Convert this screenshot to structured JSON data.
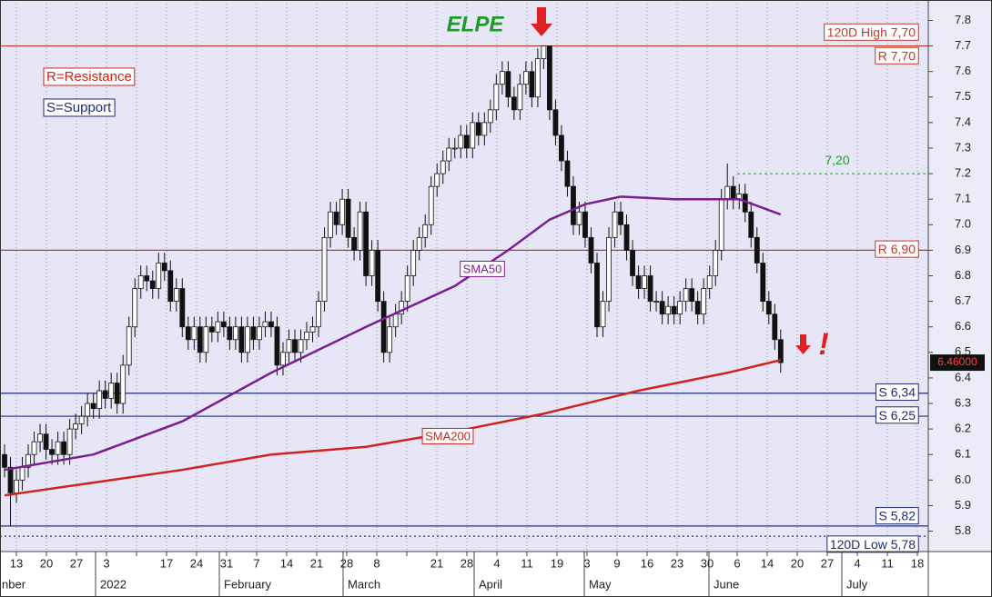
{
  "chart_data": {
    "type": "candlestick",
    "title": "ELPE",
    "legend": [
      "R=Resistance",
      "S=Support"
    ],
    "ylim": [
      5.72,
      7.88
    ],
    "yticks": [
      5.8,
      5.9,
      {
        "value": 6.0,
        "label": "6.0"
      },
      6.1,
      6.2,
      6.3,
      6.4,
      6.5,
      6.6,
      6.7,
      6.8,
      6.9,
      {
        "value": 7.0,
        "label": "7.0"
      },
      7.1,
      7.2,
      7.3,
      7.4,
      7.5,
      7.6,
      7.7,
      7.8
    ],
    "xticks": [
      "13",
      "20",
      "27",
      "3",
      null,
      "17",
      "24",
      "31",
      "7",
      "14",
      "21",
      "28",
      "8",
      null,
      "21",
      "28",
      "4",
      "11",
      "19",
      "3",
      "9",
      "16",
      "23",
      "30",
      "6",
      "14",
      "20",
      "27",
      "4",
      "11",
      "18"
    ],
    "months": [
      "nber",
      "2022",
      "February",
      "March",
      "April",
      "May",
      "June",
      "July"
    ],
    "grid": true,
    "candles": [
      [
        6.1,
        6.14,
        6.01,
        6.05
      ],
      [
        6.05,
        6.09,
        5.82,
        5.95
      ],
      [
        5.95,
        6.04,
        5.91,
        6.0
      ],
      [
        6.0,
        6.09,
        5.96,
        6.05
      ],
      [
        6.05,
        6.14,
        6.01,
        6.1
      ],
      [
        6.1,
        6.19,
        6.06,
        6.15
      ],
      [
        6.15,
        6.22,
        6.11,
        6.18
      ],
      [
        6.18,
        6.22,
        6.08,
        6.12
      ],
      [
        6.12,
        6.16,
        6.06,
        6.1
      ],
      [
        6.1,
        6.19,
        6.06,
        6.15
      ],
      [
        6.15,
        6.19,
        6.06,
        6.1
      ],
      [
        6.1,
        6.24,
        6.06,
        6.2
      ],
      [
        6.2,
        6.26,
        6.16,
        6.22
      ],
      [
        6.22,
        6.29,
        6.18,
        6.25
      ],
      [
        6.25,
        6.34,
        6.21,
        6.3
      ],
      [
        6.3,
        6.34,
        6.24,
        6.28
      ],
      [
        6.28,
        6.39,
        6.24,
        6.35
      ],
      [
        6.35,
        6.39,
        6.28,
        6.32
      ],
      [
        6.32,
        6.42,
        6.28,
        6.38
      ],
      [
        6.38,
        6.42,
        6.26,
        6.3
      ],
      [
        6.3,
        6.49,
        6.26,
        6.45
      ],
      [
        6.45,
        6.64,
        6.41,
        6.6
      ],
      [
        6.6,
        6.79,
        6.56,
        6.75
      ],
      [
        6.75,
        6.84,
        6.71,
        6.8
      ],
      [
        6.8,
        6.84,
        6.74,
        6.78
      ],
      [
        6.78,
        6.82,
        6.71,
        6.75
      ],
      [
        6.75,
        6.89,
        6.71,
        6.85
      ],
      [
        6.85,
        6.89,
        6.78,
        6.82
      ],
      [
        6.82,
        6.86,
        6.66,
        6.7
      ],
      [
        6.7,
        6.79,
        6.66,
        6.75
      ],
      [
        6.75,
        6.79,
        6.56,
        6.6
      ],
      [
        6.6,
        6.64,
        6.51,
        6.55
      ],
      [
        6.55,
        6.64,
        6.51,
        6.6
      ],
      [
        6.6,
        6.64,
        6.46,
        6.5
      ],
      [
        6.5,
        6.64,
        6.46,
        6.6
      ],
      [
        6.6,
        6.64,
        6.54,
        6.58
      ],
      [
        6.58,
        6.66,
        6.54,
        6.62
      ],
      [
        6.62,
        6.66,
        6.56,
        6.6
      ],
      [
        6.6,
        6.64,
        6.51,
        6.55
      ],
      [
        6.55,
        6.64,
        6.51,
        6.6
      ],
      [
        6.6,
        6.64,
        6.46,
        6.5
      ],
      [
        6.5,
        6.64,
        6.46,
        6.6
      ],
      [
        6.6,
        6.64,
        6.51,
        6.55
      ],
      [
        6.55,
        6.64,
        6.51,
        6.6
      ],
      [
        6.6,
        6.66,
        6.56,
        6.62
      ],
      [
        6.62,
        6.66,
        6.56,
        6.6
      ],
      [
        6.6,
        6.64,
        6.41,
        6.45
      ],
      [
        6.45,
        6.54,
        6.41,
        6.5
      ],
      [
        6.5,
        6.59,
        6.46,
        6.55
      ],
      [
        6.55,
        6.59,
        6.46,
        6.5
      ],
      [
        6.5,
        6.59,
        6.46,
        6.55
      ],
      [
        6.55,
        6.62,
        6.51,
        6.58
      ],
      [
        6.58,
        6.64,
        6.54,
        6.6
      ],
      [
        6.6,
        6.74,
        6.56,
        6.7
      ],
      [
        6.7,
        6.99,
        6.66,
        6.95
      ],
      [
        6.95,
        7.09,
        6.91,
        7.05
      ],
      [
        7.05,
        7.09,
        6.96,
        7.0
      ],
      [
        7.0,
        7.14,
        6.96,
        7.1
      ],
      [
        7.1,
        7.14,
        6.91,
        6.95
      ],
      [
        6.95,
        6.99,
        6.86,
        6.9
      ],
      [
        6.9,
        7.09,
        6.86,
        7.05
      ],
      [
        7.05,
        7.09,
        6.76,
        6.8
      ],
      [
        6.8,
        6.94,
        6.76,
        6.9
      ],
      [
        6.9,
        6.94,
        6.66,
        6.7
      ],
      [
        6.7,
        6.74,
        6.46,
        6.5
      ],
      [
        6.5,
        6.64,
        6.46,
        6.6
      ],
      [
        6.6,
        6.69,
        6.56,
        6.65
      ],
      [
        6.65,
        6.74,
        6.61,
        6.7
      ],
      [
        6.7,
        6.84,
        6.66,
        6.8
      ],
      [
        6.8,
        6.94,
        6.76,
        6.9
      ],
      [
        6.9,
        6.99,
        6.86,
        6.95
      ],
      [
        6.95,
        7.04,
        6.91,
        7.0
      ],
      [
        7.0,
        7.19,
        6.96,
        7.15
      ],
      [
        7.15,
        7.24,
        7.11,
        7.2
      ],
      [
        7.2,
        7.29,
        7.16,
        7.25
      ],
      [
        7.25,
        7.34,
        7.21,
        7.3
      ],
      [
        7.3,
        7.34,
        7.26,
        7.3
      ],
      [
        7.3,
        7.39,
        7.26,
        7.35
      ],
      [
        7.35,
        7.39,
        7.26,
        7.3
      ],
      [
        7.3,
        7.44,
        7.26,
        7.4
      ],
      [
        7.4,
        7.44,
        7.31,
        7.35
      ],
      [
        7.35,
        7.44,
        7.31,
        7.4
      ],
      [
        7.4,
        7.49,
        7.36,
        7.45
      ],
      [
        7.45,
        7.59,
        7.41,
        7.55
      ],
      [
        7.55,
        7.64,
        7.51,
        7.6
      ],
      [
        7.6,
        7.64,
        7.46,
        7.5
      ],
      [
        7.5,
        7.54,
        7.41,
        7.45
      ],
      [
        7.45,
        7.59,
        7.41,
        7.55
      ],
      [
        7.55,
        7.64,
        7.51,
        7.6
      ],
      [
        7.6,
        7.64,
        7.46,
        7.5
      ],
      [
        7.5,
        7.69,
        7.46,
        7.65
      ],
      [
        7.65,
        7.7,
        7.61,
        7.7
      ],
      [
        7.7,
        7.7,
        7.41,
        7.45
      ],
      [
        7.45,
        7.49,
        7.31,
        7.35
      ],
      [
        7.35,
        7.39,
        7.21,
        7.25
      ],
      [
        7.25,
        7.29,
        7.11,
        7.15
      ],
      [
        7.15,
        7.19,
        6.96,
        7.0
      ],
      [
        7.0,
        7.09,
        6.96,
        7.05
      ],
      [
        7.05,
        7.09,
        6.91,
        6.95
      ],
      [
        6.95,
        6.99,
        6.81,
        6.85
      ],
      [
        6.85,
        6.89,
        6.56,
        6.6
      ],
      [
        6.6,
        6.74,
        6.56,
        6.7
      ],
      [
        6.7,
        6.99,
        6.66,
        6.95
      ],
      [
        6.95,
        7.09,
        6.91,
        7.05
      ],
      [
        7.05,
        7.09,
        6.96,
        7.0
      ],
      [
        7.0,
        7.04,
        6.86,
        6.9
      ],
      [
        6.9,
        6.94,
        6.76,
        6.8
      ],
      [
        6.8,
        6.84,
        6.71,
        6.75
      ],
      [
        6.75,
        6.84,
        6.71,
        6.8
      ],
      [
        6.8,
        6.84,
        6.66,
        6.7
      ],
      [
        6.7,
        6.74,
        6.66,
        6.7
      ],
      [
        6.7,
        6.74,
        6.61,
        6.65
      ],
      [
        6.65,
        6.72,
        6.61,
        6.68
      ],
      [
        6.68,
        6.72,
        6.61,
        6.65
      ],
      [
        6.65,
        6.74,
        6.61,
        6.7
      ],
      [
        6.7,
        6.79,
        6.66,
        6.75
      ],
      [
        6.75,
        6.79,
        6.66,
        6.7
      ],
      [
        6.7,
        6.74,
        6.61,
        6.65
      ],
      [
        6.65,
        6.79,
        6.61,
        6.75
      ],
      [
        6.75,
        6.84,
        6.71,
        6.8
      ],
      [
        6.8,
        6.94,
        6.76,
        6.9
      ],
      [
        6.9,
        7.14,
        6.86,
        7.1
      ],
      [
        7.1,
        7.24,
        7.06,
        7.15
      ],
      [
        7.15,
        7.19,
        7.06,
        7.1
      ],
      [
        7.1,
        7.16,
        7.06,
        7.12
      ],
      [
        7.12,
        7.16,
        7.01,
        7.05
      ],
      [
        7.05,
        7.09,
        6.91,
        6.95
      ],
      [
        6.95,
        6.99,
        6.81,
        6.85
      ],
      [
        6.85,
        6.89,
        6.66,
        6.7
      ],
      [
        6.7,
        6.74,
        6.61,
        6.65
      ],
      [
        6.65,
        6.69,
        6.51,
        6.55
      ],
      [
        6.55,
        6.59,
        6.42,
        6.46
      ]
    ],
    "sma": [
      {
        "name": "SMA50",
        "color": "#7a1f8f",
        "x": [
          0,
          15,
          30,
          45,
          61,
          76,
          85,
          92,
          98,
          104,
          113,
          124,
          131
        ],
        "values": [
          6.04,
          6.1,
          6.23,
          6.42,
          6.6,
          6.76,
          6.9,
          7.02,
          7.08,
          7.11,
          7.1,
          7.1,
          7.04
        ]
      },
      {
        "name": "SMA200",
        "color": "#d0221c",
        "x": [
          0,
          15,
          30,
          45,
          61,
          76,
          91,
          107,
          122,
          131
        ],
        "values": [
          5.94,
          5.99,
          6.04,
          6.1,
          6.13,
          6.19,
          6.26,
          6.35,
          6.42,
          6.47
        ]
      }
    ],
    "levels": [
      {
        "label": "120D High 7,70",
        "value": 7.7,
        "color": "#c0392b"
      },
      {
        "label": "R 7,70",
        "value": 7.7,
        "color": "#c0392b"
      },
      {
        "label": "R 6,90",
        "value": 6.9,
        "color": "#c0392b"
      },
      {
        "label": "S 6,34",
        "value": 6.34,
        "color": "#1f2a7a"
      },
      {
        "label": "S 6,25",
        "value": 6.25,
        "color": "#1f2a7a"
      },
      {
        "label": "S 5,82",
        "value": 5.82,
        "color": "#1f2a7a"
      },
      {
        "label": "120D Low 5,78",
        "value": 5.78,
        "color": "#1f2a7a"
      }
    ],
    "target": {
      "label": "7,20",
      "value": 7.2,
      "color": "#1f9a2a"
    },
    "last_price": {
      "value": 6.46,
      "label": "6.46000"
    },
    "annotation": "!"
  }
}
